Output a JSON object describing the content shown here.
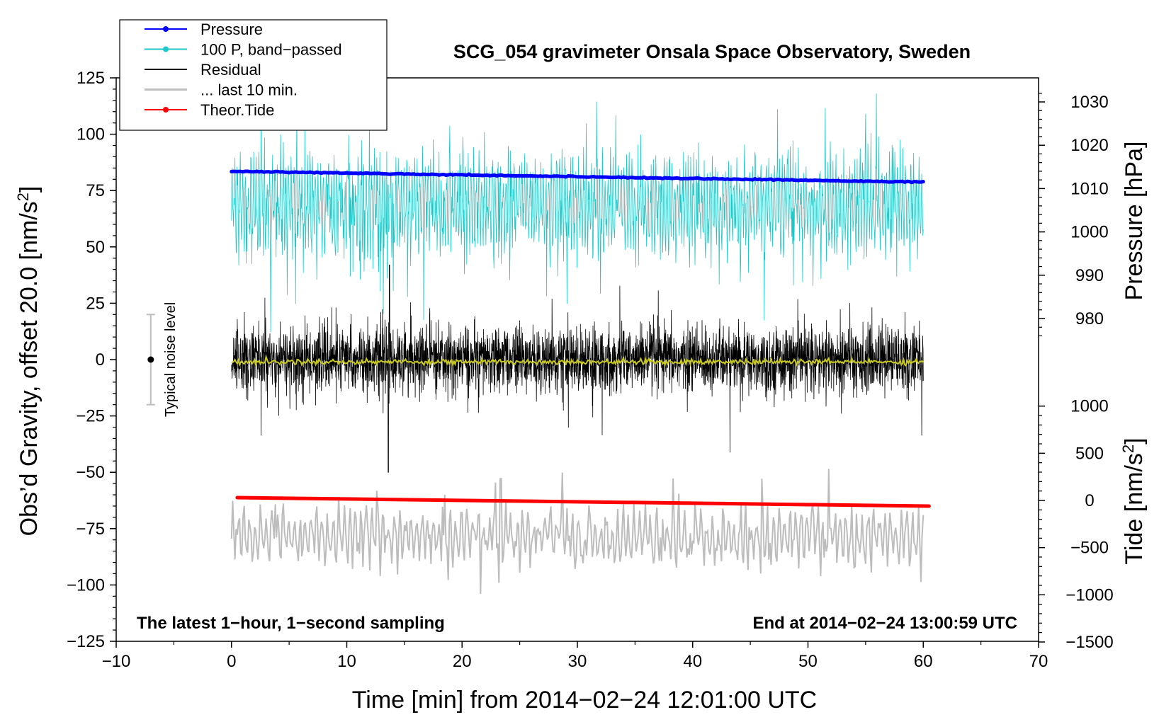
{
  "chart_data": {
    "type": "line",
    "title": "SCG_054 gravimeter Onsala Space Observatory, Sweden",
    "xlabel": "Time [min] from 2014−02−24 12:01:00 UTC",
    "ylabel_main": "Obs’d Gravity, offset 20.0 [nm/s",
    "ylabel_sup": "2",
    "ylabel_close": "]",
    "ylabel_pressure": "Pressure [hPa]",
    "ylabel_tide": "Tide [nm/s",
    "ylabel_tide_sup": "2",
    "ylabel_tide_close": "]",
    "xlim": [
      -10,
      70
    ],
    "ylim": [
      -125,
      125
    ],
    "x_ticks": [
      -10,
      0,
      10,
      20,
      30,
      40,
      50,
      60,
      70
    ],
    "x_tick_labels": [
      "−10",
      "0",
      "10",
      "20",
      "30",
      "40",
      "50",
      "60",
      "70"
    ],
    "y_ticks": [
      125,
      100,
      75,
      50,
      25,
      0,
      -25,
      -50,
      -75,
      -100,
      -125
    ],
    "y_tick_labels": [
      "125",
      "100",
      "75",
      "50",
      "25",
      "0",
      "−25",
      "−50",
      "−75",
      "−100",
      "−125"
    ],
    "pressure_ticks": [
      1030,
      1020,
      1010,
      1000,
      990,
      980
    ],
    "pressure_tick_labels": [
      "1030",
      "1020",
      "1010",
      "1000",
      "990",
      "980"
    ],
    "tide_ticks": [
      1000,
      500,
      0,
      -500,
      -1000,
      -1500
    ],
    "tide_tick_labels": [
      "1000",
      "500",
      "0",
      "−500",
      "−1000",
      "−1500"
    ],
    "legend": [
      {
        "label": "Pressure",
        "color": "#0000ff",
        "marker": true
      },
      {
        "label": "100 P, band−passed",
        "color": "#1ec8c8",
        "marker": true
      },
      {
        "label": "Residual",
        "color": "#000000",
        "marker": false
      },
      {
        "label": "... last 10 min.",
        "color": "#bdbdbd",
        "marker": false
      },
      {
        "label": "Theor.Tide",
        "color": "#ff0000",
        "marker": true
      }
    ],
    "legend_position": "top-left",
    "series": [
      {
        "name": "Pressure",
        "color": "#0000ff",
        "x_range": [
          0,
          60
        ],
        "start": 1014,
        "end": 1011.5
      },
      {
        "name": "100 P, band−passed",
        "color": "#1ec8c8",
        "x_range": [
          0,
          60
        ],
        "center": 68,
        "amplitude": 16
      },
      {
        "name": "Residual",
        "color": "#000000",
        "x_range": [
          0,
          60
        ],
        "center": 0,
        "amplitude": 12
      },
      {
        "name": "Residual (smoothed)",
        "color": "#c8c81e",
        "x_range": [
          0,
          60
        ],
        "center": -1
      },
      {
        "name": "... last 10 min.",
        "color": "#bdbdbd",
        "x_range": [
          0,
          60
        ],
        "center": -78,
        "amplitude": 10
      },
      {
        "name": "Theor.Tide",
        "color": "#ff0000",
        "x_range": [
          0.5,
          60.5
        ],
        "start": 30,
        "end": -60
      }
    ],
    "noise_level": {
      "label": "Typical noise level",
      "x": -7,
      "center": 0,
      "half_range": 20
    },
    "annotations": {
      "bottom_left": "The latest 1−hour, 1−second sampling",
      "bottom_right": "End at 2014−02−24 13:00:59 UTC"
    }
  }
}
